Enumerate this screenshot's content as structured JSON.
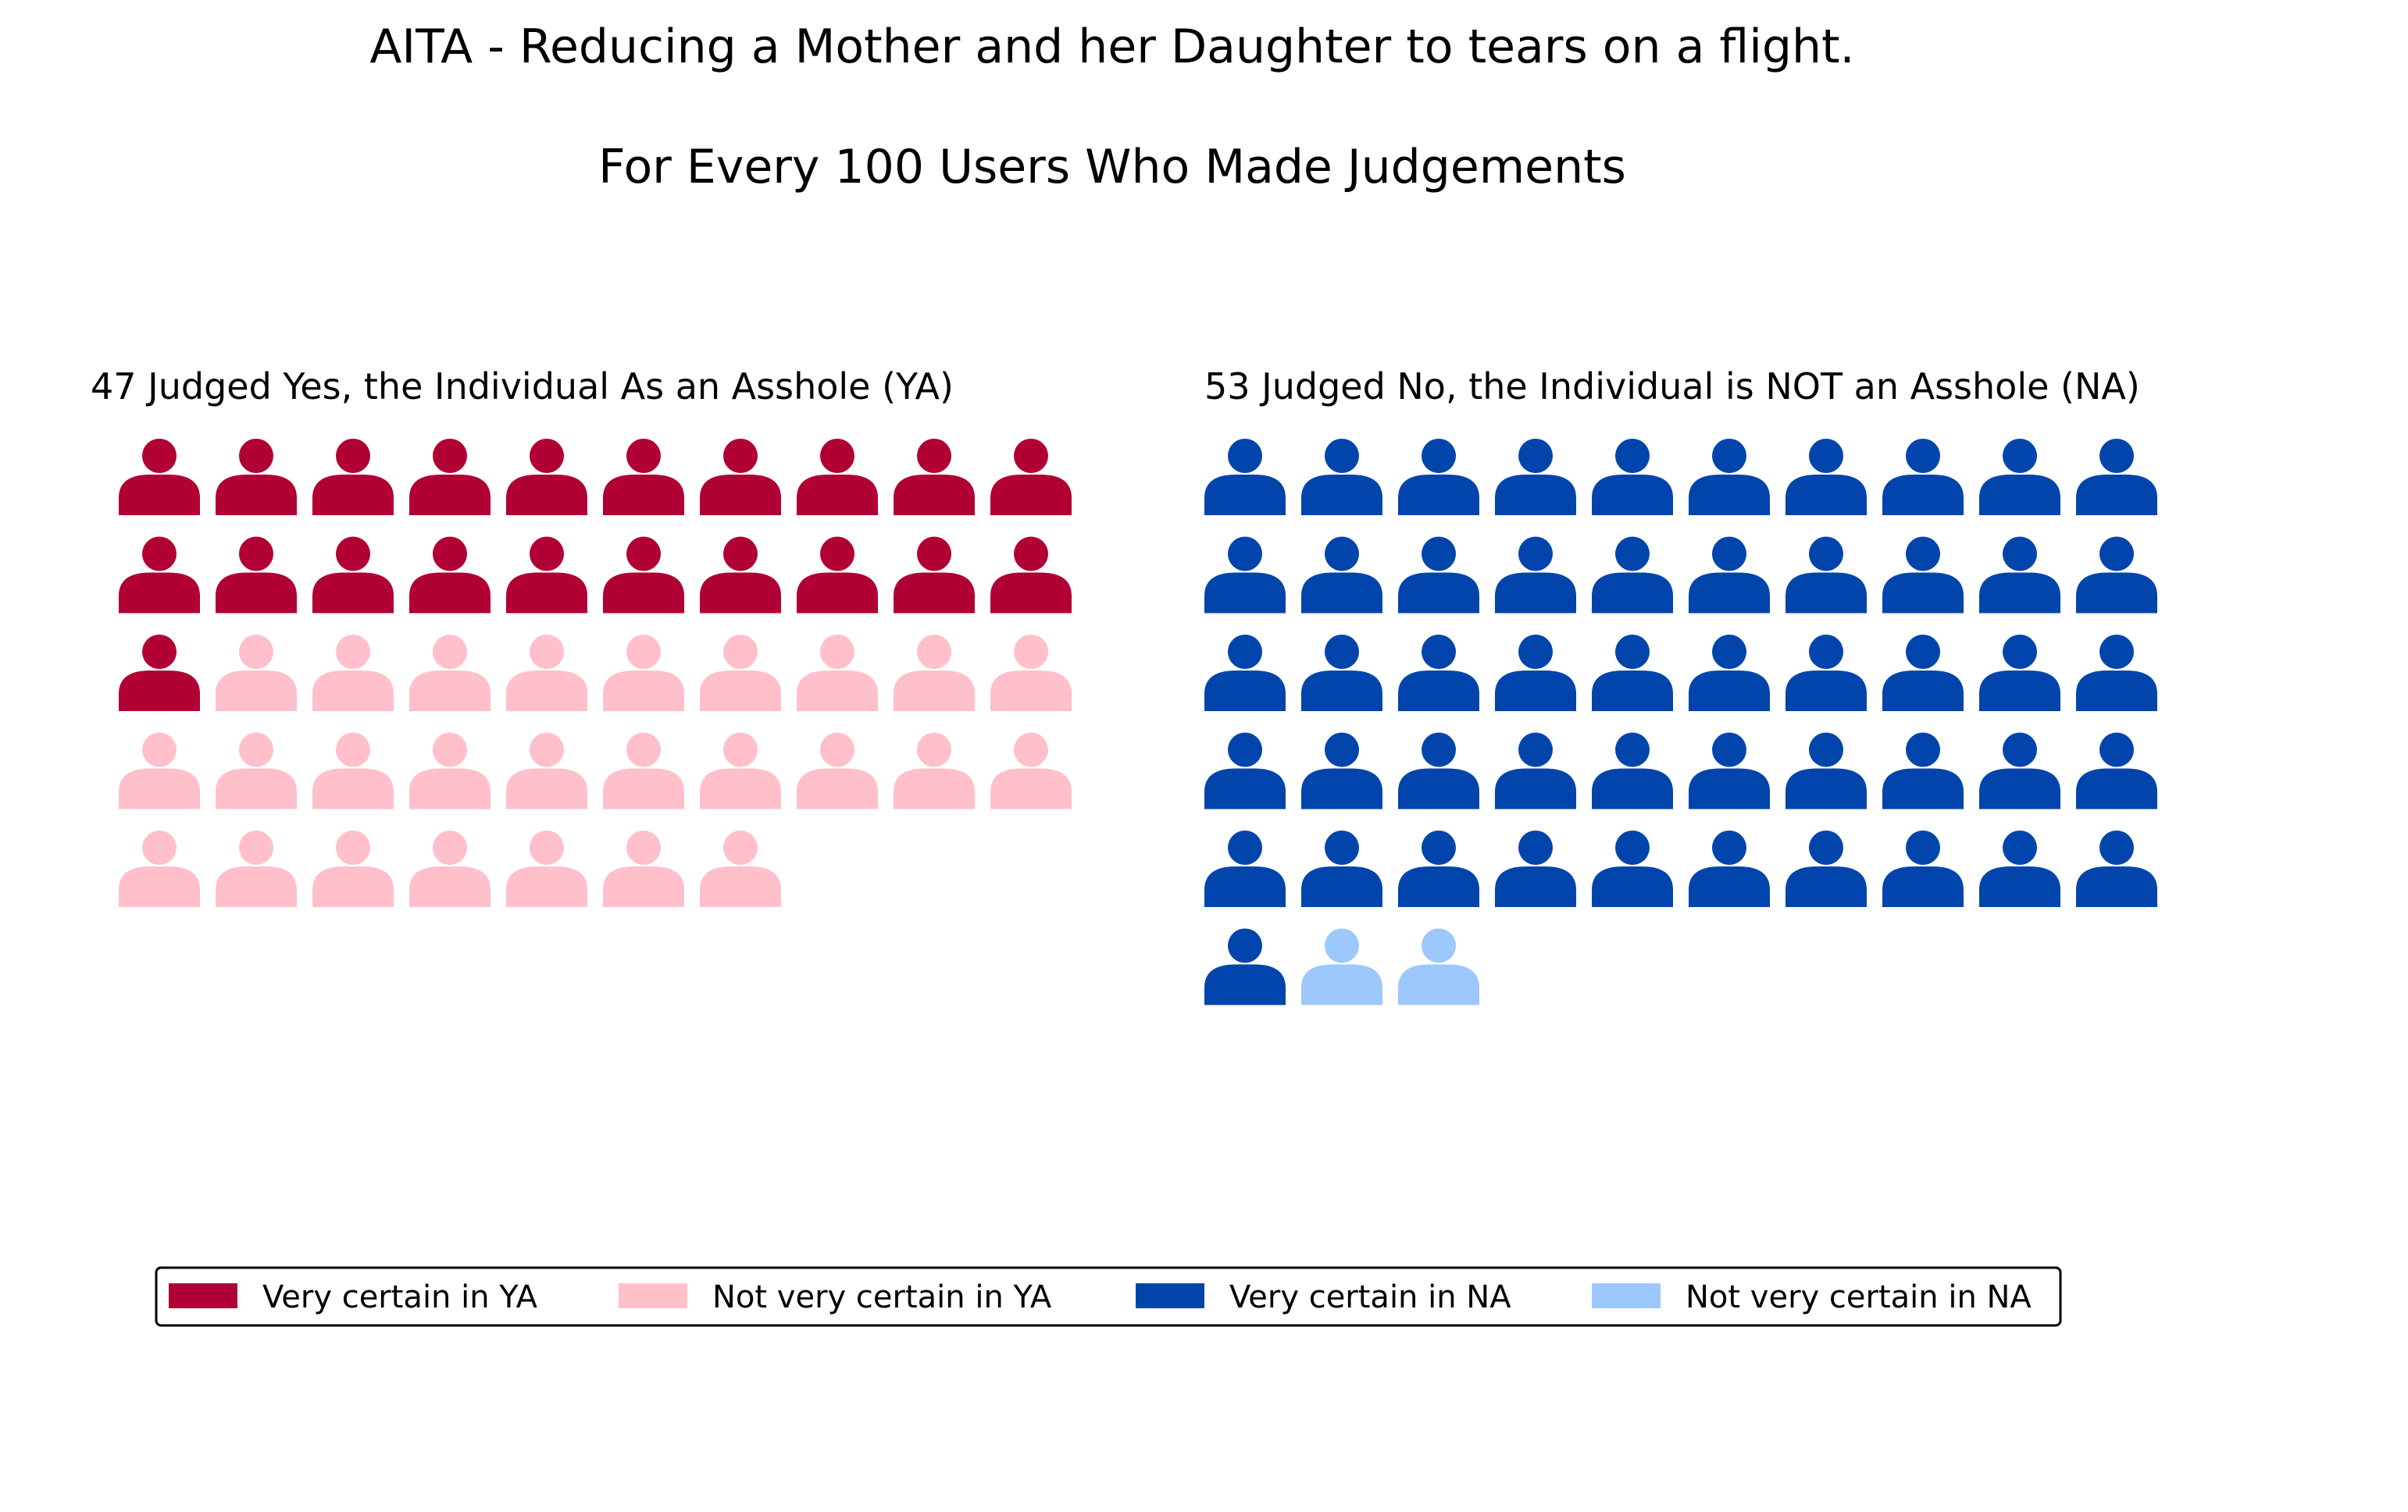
{
  "chart_data": {
    "type": "waffle",
    "title": "AITA - Reducing a Mother and her Daughter to tears on a flight.",
    "subtitle": "For Every 100 Users Who Made Judgements",
    "panels": [
      {
        "key": "ya",
        "title": "47 Judged Yes, the Individual As an Asshole (YA)",
        "total": 47,
        "icons_per_row": 10,
        "segments": [
          {
            "label": "Very certain in YA",
            "count": 21,
            "color": "#b10034"
          },
          {
            "label": "Not very certain in YA",
            "count": 26,
            "color": "#ffc0cb"
          }
        ]
      },
      {
        "key": "na",
        "title": "53 Judged No, the Individual is NOT an Asshole (NA)",
        "total": 53,
        "icons_per_row": 10,
        "segments": [
          {
            "label": "Very certain in NA",
            "count": 51,
            "color": "#0145ac"
          },
          {
            "label": "Not very certain in NA",
            "count": 2,
            "color": "#9dc8fe"
          }
        ]
      }
    ],
    "legend": {
      "placement": "bottom",
      "items": [
        {
          "label": "Very certain in YA",
          "color": "#b10034"
        },
        {
          "label": "Not very certain in YA",
          "color": "#ffc0cb"
        },
        {
          "label": "Very certain in NA",
          "color": "#0145ac"
        },
        {
          "label": "Not very certain in NA",
          "color": "#9dc8fe"
        }
      ]
    },
    "icon": "person-icon"
  }
}
